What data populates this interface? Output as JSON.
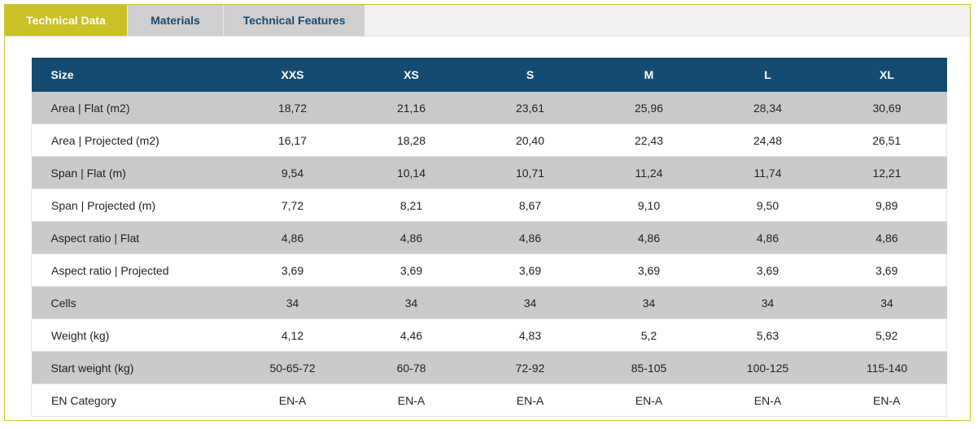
{
  "tabs": [
    {
      "label": "Technical Data",
      "active": true
    },
    {
      "label": "Materials",
      "active": false
    },
    {
      "label": "Technical Features",
      "active": false
    }
  ],
  "colors": {
    "accent": "#c9c126",
    "header": "#154b70",
    "stripe": "#cacaca"
  },
  "table": {
    "headers": [
      "Size",
      "XXS",
      "XS",
      "S",
      "M",
      "L",
      "XL"
    ],
    "rows": [
      [
        "Area | Flat (m2)",
        "18,72",
        "21,16",
        "23,61",
        "25,96",
        "28,34",
        "30,69"
      ],
      [
        "Area | Projected (m2)",
        "16,17",
        "18,28",
        "20,40",
        "22,43",
        "24,48",
        "26,51"
      ],
      [
        "Span | Flat (m)",
        "9,54",
        "10,14",
        "10,71",
        "11,24",
        "11,74",
        "12,21"
      ],
      [
        "Span | Projected (m)",
        "7,72",
        "8,21",
        "8,67",
        "9,10",
        "9,50",
        "9,89"
      ],
      [
        "Aspect ratio | Flat",
        "4,86",
        "4,86",
        "4,86",
        "4,86",
        "4,86",
        "4,86"
      ],
      [
        "Aspect ratio | Projected",
        "3,69",
        "3,69",
        "3,69",
        "3,69",
        "3,69",
        "3,69"
      ],
      [
        "Cells",
        "34",
        "34",
        "34",
        "34",
        "34",
        "34"
      ],
      [
        "Weight (kg)",
        "4,12",
        "4,46",
        "4,83",
        "5,2",
        "5,63",
        "5,92"
      ],
      [
        "Start weight (kg)",
        "50-65-72",
        "60-78",
        "72-92",
        "85-105",
        "100-125",
        "115-140"
      ],
      [
        "EN Category",
        "EN-A",
        "EN-A",
        "EN-A",
        "EN-A",
        "EN-A",
        "EN-A"
      ]
    ]
  }
}
